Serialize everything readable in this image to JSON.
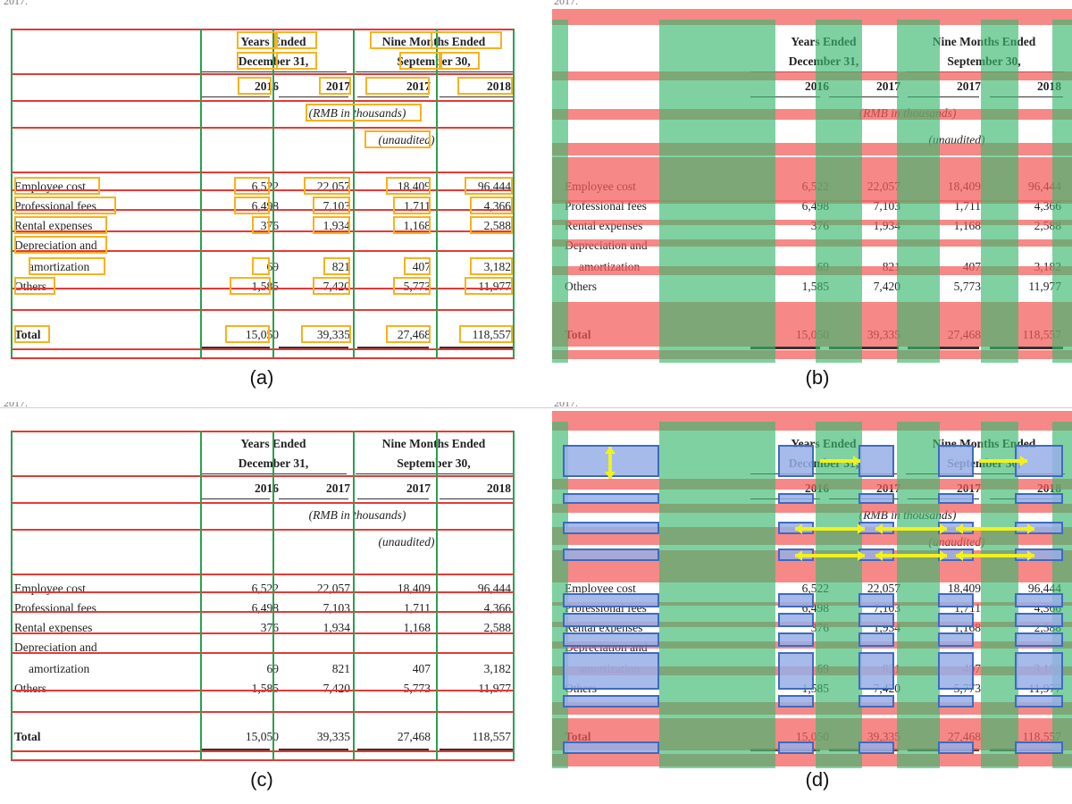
{
  "figure": {
    "panels": [
      {
        "label": "(a)",
        "corner": "2017."
      },
      {
        "label": "(b)",
        "corner": "2017."
      },
      {
        "label": "(c)",
        "corner": "2017."
      },
      {
        "label": "(d)",
        "corner": "2017."
      }
    ]
  },
  "table": {
    "header": {
      "group1_line1": "Years Ended",
      "group1_line2": "December 31,",
      "group2_line1": "Nine Months Ended",
      "group2_line2": "September 30,",
      "years": [
        "2016",
        "2017",
        "2017",
        "2018"
      ],
      "unit_note": "(RMB in thousands)",
      "unaudited_note": "(unaudited)"
    },
    "rows": [
      {
        "label": "Employee cost",
        "values": [
          "6,522",
          "22,057",
          "18,409",
          "96,444"
        ]
      },
      {
        "label": "Professional fees",
        "values": [
          "6,498",
          "7,103",
          "1,711",
          "4,366"
        ]
      },
      {
        "label": "Rental expenses",
        "values": [
          "376",
          "1,934",
          "1,168",
          "2,588"
        ]
      },
      {
        "label": "Depreciation and",
        "label2": "amortization",
        "values": [
          "69",
          "821",
          "407",
          "3,182"
        ]
      },
      {
        "label": "Others",
        "values": [
          "1,585",
          "7,420",
          "5,773",
          "11,977"
        ]
      },
      {
        "label": "Total",
        "values": [
          "15,050",
          "39,335",
          "27,468",
          "118,557"
        ],
        "bold": true
      }
    ]
  },
  "colors": {
    "row_line": "#e53935",
    "column_line": "#2e9e4f",
    "word_box": "#f7b21e",
    "row_band": "#f25a5a",
    "column_band": "#3cb96e",
    "cell_fill": "#96afe6",
    "cell_border": "#3e6bbd",
    "merge_arrow": "#f2f21a"
  }
}
